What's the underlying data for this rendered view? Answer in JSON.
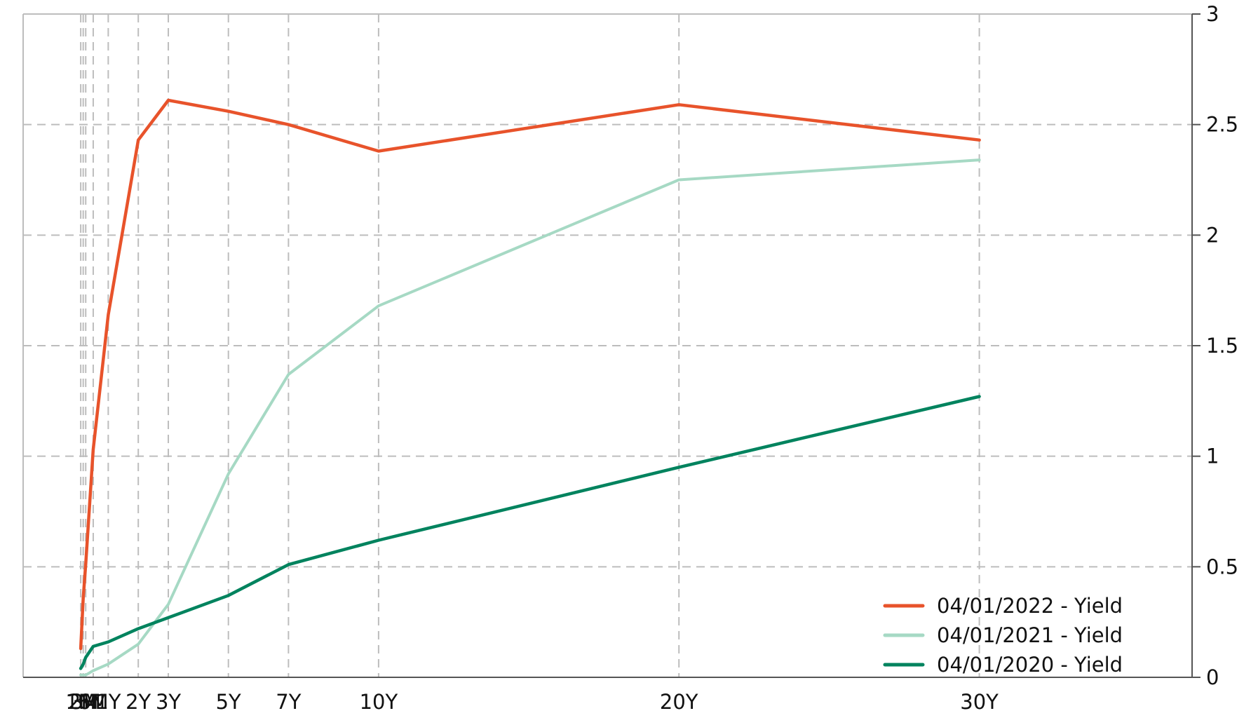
{
  "chart_data": {
    "type": "line",
    "title": "",
    "xlabel": "",
    "ylabel": "",
    "categories": [
      "1M",
      "2M",
      "3M",
      "6M",
      "1Y",
      "2Y",
      "3Y",
      "5Y",
      "7Y",
      "10Y",
      "20Y",
      "30Y"
    ],
    "x_months": [
      1,
      2,
      3,
      6,
      12,
      24,
      36,
      60,
      84,
      120,
      240,
      360
    ],
    "x_range_months": [
      -22,
      445
    ],
    "ylim": [
      0,
      3
    ],
    "yticks": [
      "0",
      "0.5",
      "1",
      "1.5",
      "2",
      "2.5",
      "3"
    ],
    "y_axis_position": "right",
    "grid": true,
    "legend_position": "bottom-right",
    "series": [
      {
        "name": "04/01/2022 - Yield",
        "color": "#e8532b",
        "values": [
          0.13,
          0.36,
          0.51,
          1.03,
          1.64,
          2.43,
          2.61,
          2.56,
          2.5,
          2.38,
          2.59,
          2.43
        ]
      },
      {
        "name": "04/01/2021 - Yield",
        "color": "#a6d9c4",
        "values": [
          0.01,
          0.01,
          0.01,
          0.03,
          0.06,
          0.15,
          0.33,
          0.92,
          1.37,
          1.68,
          2.25,
          2.34
        ]
      },
      {
        "name": "04/01/2020 - Yield",
        "color": "#00835e",
        "values": [
          0.04,
          0.06,
          0.09,
          0.14,
          0.16,
          0.22,
          0.27,
          0.37,
          0.51,
          0.62,
          0.95,
          1.27
        ]
      }
    ]
  }
}
